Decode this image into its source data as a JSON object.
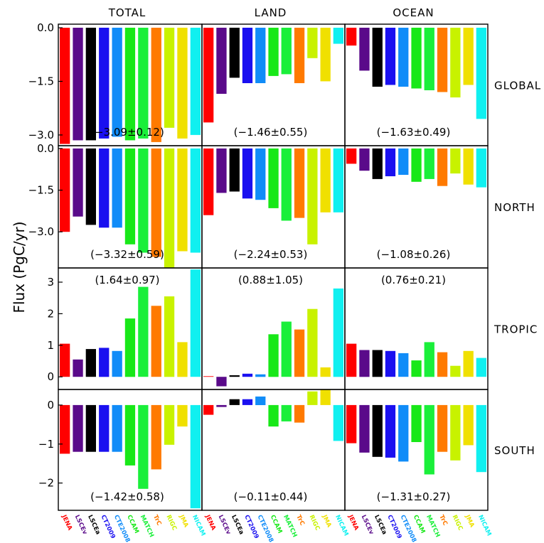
{
  "ylabel": "Flux  (PgC/yr)",
  "columns": [
    "TOTAL",
    "LAND",
    "OCEAN"
  ],
  "rows": [
    "GLOBAL",
    "NORTH",
    "TROPIC",
    "SOUTH"
  ],
  "models": [
    {
      "name": "JENA",
      "color": "#ff0000"
    },
    {
      "name": "LSCEv",
      "color": "#5a0a8a"
    },
    {
      "name": "LSCEa",
      "color": "#000000"
    },
    {
      "name": "CT2009",
      "color": "#1a10f0"
    },
    {
      "name": "CTE2008",
      "color": "#108cf8"
    },
    {
      "name": "CCAM",
      "color": "#18e818"
    },
    {
      "name": "MATCH",
      "color": "#1aef3a"
    },
    {
      "name": "TrC",
      "color": "#ff7a00"
    },
    {
      "name": "RIGC",
      "color": "#c8f200"
    },
    {
      "name": "JMA",
      "color": "#f0e000"
    },
    {
      "name": "NICAM",
      "color": "#10f0f0"
    }
  ],
  "chart_data": {
    "type": "bar",
    "panels": [
      {
        "row": "GLOBAL",
        "column": "TOTAL",
        "annotation": "(−3.09±0.12)",
        "yticks": [
          "0.0",
          "−1.5",
          "−3.0"
        ],
        "ylim": [
          -3.3,
          0.1
        ],
        "values": [
          -3.25,
          -3.15,
          -3.15,
          -3.1,
          -3.05,
          -3.15,
          -3.1,
          -3.2,
          -2.8,
          -3.1,
          -3.0
        ]
      },
      {
        "row": "GLOBAL",
        "column": "LAND",
        "annotation": "(−1.46±0.55)",
        "yticks": [],
        "ylim": [
          -3.3,
          0.1
        ],
        "values": [
          -2.65,
          -1.85,
          -1.4,
          -1.55,
          -1.55,
          -1.35,
          -1.3,
          -1.55,
          -0.85,
          -1.5,
          -0.45
        ]
      },
      {
        "row": "GLOBAL",
        "column": "OCEAN",
        "annotation": "(−1.63±0.49)",
        "yticks": [],
        "ylim": [
          -3.3,
          0.1
        ],
        "values": [
          -0.5,
          -1.2,
          -1.65,
          -1.6,
          -1.65,
          -1.7,
          -1.75,
          -1.8,
          -1.95,
          -1.6,
          -2.55
        ]
      },
      {
        "row": "NORTH",
        "column": "TOTAL",
        "annotation": "(−3.32±0.59)",
        "yticks": [
          "0.0",
          "−1.5",
          "−3.0"
        ],
        "ylim": [
          -4.3,
          0.1
        ],
        "values": [
          -3.0,
          -2.45,
          -2.75,
          -2.85,
          -2.85,
          -3.45,
          -3.75,
          -3.9,
          -4.3,
          -3.7,
          -3.75
        ]
      },
      {
        "row": "NORTH",
        "column": "LAND",
        "annotation": "(−2.24±0.53)",
        "yticks": [],
        "ylim": [
          -4.3,
          0.1
        ],
        "values": [
          -2.4,
          -1.6,
          -1.55,
          -1.8,
          -1.85,
          -2.15,
          -2.6,
          -2.5,
          -3.45,
          -2.3,
          -2.3
        ]
      },
      {
        "row": "NORTH",
        "column": "OCEAN",
        "annotation": "(−1.08±0.26)",
        "yticks": [],
        "ylim": [
          -4.3,
          0.1
        ],
        "values": [
          -0.55,
          -0.8,
          -1.1,
          -1.0,
          -0.95,
          -1.2,
          -1.1,
          -1.35,
          -0.9,
          -1.3,
          -1.4
        ]
      },
      {
        "row": "TROPIC",
        "column": "TOTAL",
        "annotation": "(1.64±0.97)",
        "yticks": [
          "0",
          "1",
          "2",
          "3"
        ],
        "ylim": [
          -0.4,
          3.45
        ],
        "values": [
          1.05,
          0.55,
          0.88,
          0.92,
          0.82,
          1.85,
          2.85,
          2.25,
          2.55,
          1.1,
          3.4
        ]
      },
      {
        "row": "TROPIC",
        "column": "LAND",
        "annotation": "(0.88±1.05)",
        "yticks": [],
        "ylim": [
          -0.4,
          3.45
        ],
        "values": [
          0.02,
          -0.3,
          0.05,
          0.1,
          0.08,
          1.35,
          1.75,
          1.5,
          2.15,
          0.3,
          2.8
        ]
      },
      {
        "row": "TROPIC",
        "column": "OCEAN",
        "annotation": "(0.76±0.21)",
        "yticks": [],
        "ylim": [
          -0.4,
          3.45
        ],
        "values": [
          1.05,
          0.85,
          0.85,
          0.82,
          0.75,
          0.52,
          1.1,
          0.78,
          0.35,
          0.82,
          0.6
        ]
      },
      {
        "row": "SOUTH",
        "column": "TOTAL",
        "annotation": "(−1.42±0.58)",
        "yticks": [
          "0",
          "−1",
          "−2"
        ],
        "ylim": [
          -2.7,
          0.4
        ],
        "values": [
          -1.25,
          -1.2,
          -1.2,
          -1.2,
          -1.2,
          -1.55,
          -2.15,
          -1.65,
          -1.02,
          -0.55,
          -2.65
        ]
      },
      {
        "row": "SOUTH",
        "column": "LAND",
        "annotation": "(−0.11±0.44)",
        "yticks": [],
        "ylim": [
          -2.7,
          0.4
        ],
        "values": [
          -0.25,
          -0.05,
          0.15,
          0.15,
          0.22,
          -0.55,
          -0.42,
          -0.45,
          0.35,
          0.45,
          -0.92
        ]
      },
      {
        "row": "SOUTH",
        "column": "OCEAN",
        "annotation": "(−1.31±0.27)",
        "yticks": [],
        "ylim": [
          -2.7,
          0.4
        ],
        "values": [
          -0.98,
          -1.22,
          -1.33,
          -1.35,
          -1.45,
          -0.95,
          -1.78,
          -1.2,
          -1.42,
          -1.03,
          -1.72
        ]
      }
    ]
  }
}
